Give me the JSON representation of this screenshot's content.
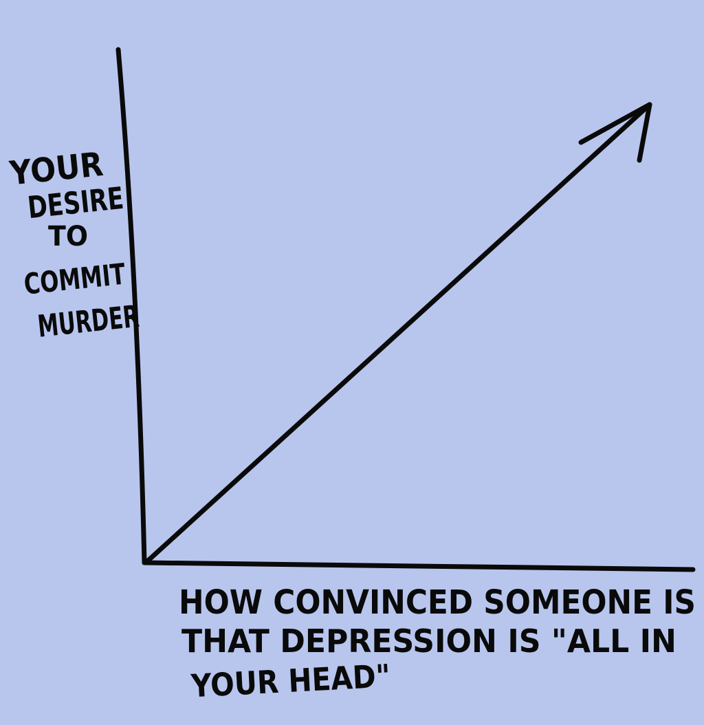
{
  "background_color": "#b8c6ee",
  "ink_color": "#0a0a0a",
  "chart_data": {
    "type": "line",
    "title": "",
    "ylabel_lines": [
      "YOUR",
      "DESIRE",
      "TO",
      "COMMIT",
      "MURDER"
    ],
    "xlabel_lines": [
      "HOW CONVINCED SOMEONE IS",
      "THAT DEPRESSION IS \"ALL IN",
      "YOUR HEAD\""
    ],
    "xlim": [
      0,
      1
    ],
    "ylim": [
      0,
      1
    ],
    "grid": false,
    "ticks": false,
    "series": [
      {
        "x": [
          0,
          1
        ],
        "y": [
          0,
          1
        ],
        "arrow_at_end": true
      }
    ]
  }
}
